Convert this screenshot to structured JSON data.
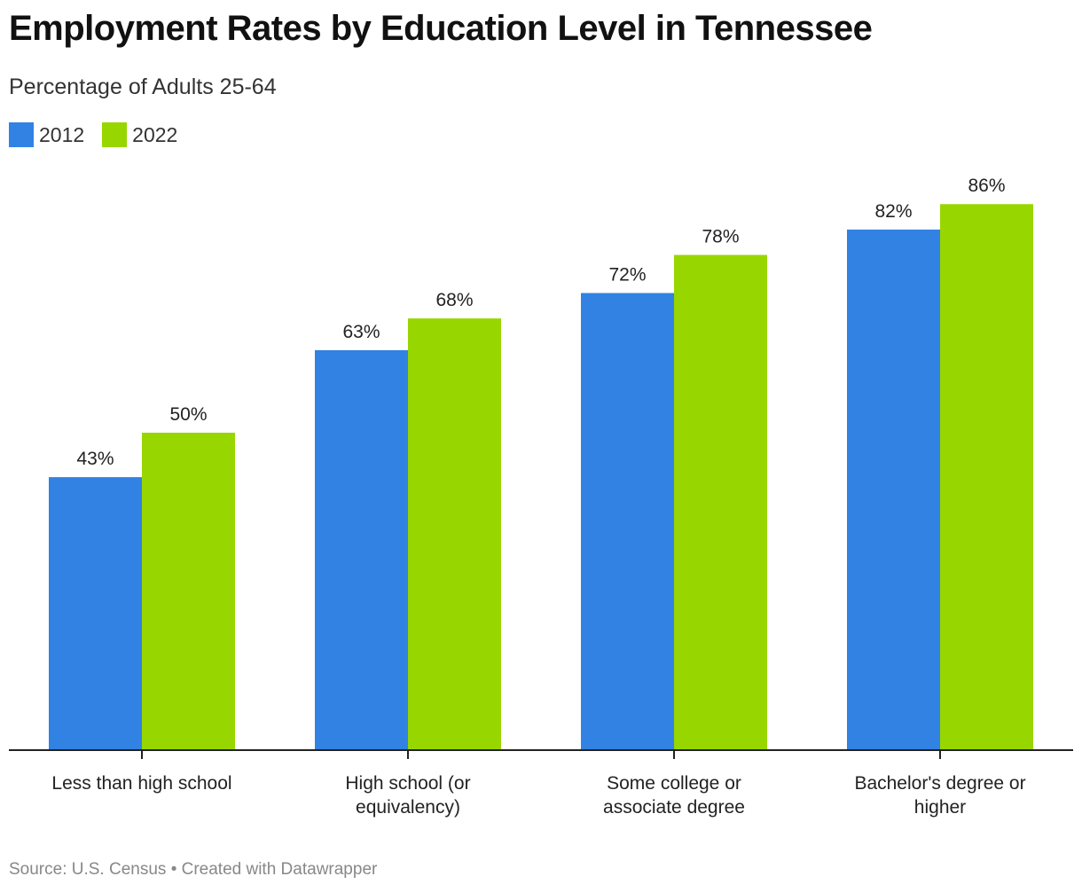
{
  "header": {
    "title": "Employment Rates by Education Level in Tennessee",
    "subtitle": "Percentage of Adults 25-64"
  },
  "footer": {
    "source_text": "Source: U.S. Census • Created with Datawrapper"
  },
  "chart_data": {
    "type": "bar",
    "title": "Employment Rates by Education Level in Tennessee",
    "subtitle": "Percentage of Adults 25-64",
    "xlabel": "",
    "ylabel": "",
    "categories": [
      [
        "Less than high school"
      ],
      [
        "High school (or",
        "equivalency)"
      ],
      [
        "Some college or",
        "associate degree"
      ],
      [
        "Bachelor's degree or",
        "higher"
      ]
    ],
    "series": [
      {
        "name": "2012",
        "color": "#3182e3",
        "values": [
          43,
          63,
          72,
          82
        ],
        "labels": [
          "43%",
          "63%",
          "72%",
          "82%"
        ]
      },
      {
        "name": "2022",
        "color": "#98d600",
        "values": [
          50,
          68,
          78,
          86
        ],
        "labels": [
          "50%",
          "68%",
          "78%",
          "86%"
        ]
      }
    ],
    "ylim": [
      0,
      100
    ],
    "grid": false,
    "legend_position": "top-left"
  }
}
